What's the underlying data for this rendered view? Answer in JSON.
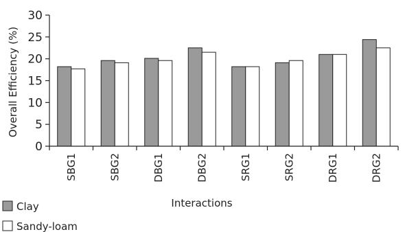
{
  "chart_data": {
    "type": "bar",
    "title": "",
    "xlabel": "Interactions",
    "ylabel": "Overall Efficiency (%)",
    "ylim": [
      0,
      30
    ],
    "yticks": [
      "0",
      "5",
      "10",
      "15",
      "20",
      "25",
      "30"
    ],
    "categories": [
      "SBG1",
      "SBG2",
      "DBG1",
      "DBG2",
      "SRG1",
      "SRG2",
      "DRG1",
      "DRG2"
    ],
    "series": [
      {
        "name": "Clay",
        "color": "#9a9a9a",
        "values": [
          18.2,
          19.6,
          20.1,
          22.5,
          18.2,
          19.1,
          21.0,
          24.4
        ]
      },
      {
        "name": "Sandy-loam",
        "color": "#ffffff",
        "values": [
          17.7,
          19.1,
          19.6,
          21.5,
          18.2,
          19.6,
          21.0,
          22.5
        ]
      }
    ],
    "grid": false,
    "legend_position": "bottom-left"
  }
}
